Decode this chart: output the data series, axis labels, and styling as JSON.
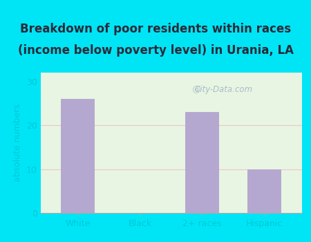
{
  "categories": [
    "White",
    "Black",
    "2+ races",
    "Hispanic"
  ],
  "values": [
    26,
    0,
    23,
    10
  ],
  "bar_color": "#b5a8d0",
  "title_line1": "Breakdown of poor residents within races",
  "title_line2": "(income below poverty level) in Urania, LA",
  "ylabel": "absolute numbers",
  "ylim": [
    0,
    32
  ],
  "yticks": [
    0,
    10,
    20,
    30
  ],
  "outer_bg": "#00e5f5",
  "inner_bg": "#e8f5e2",
  "grid_color": "#e8c8c8",
  "title_color": "#2a2a3a",
  "axis_label_color": "#00c8d8",
  "tick_label_color": "#00c8d8",
  "watermark_text": "City-Data.com",
  "watermark_color": "#a0b8c8",
  "title_fontsize": 12,
  "ylabel_fontsize": 9,
  "tick_fontsize": 9
}
